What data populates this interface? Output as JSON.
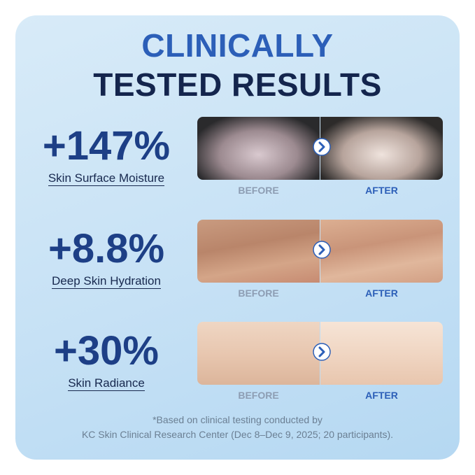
{
  "header": {
    "title_line1": "CLINICALLY",
    "title_line2": "TESTED RESULTS"
  },
  "results": [
    {
      "value": "+147%",
      "label": "Skin Surface Moisture",
      "before": "BEFORE",
      "after": "AFTER"
    },
    {
      "value": "+8.8%",
      "label": "Deep Skin Hydration",
      "before": "BEFORE",
      "after": "AFTER"
    },
    {
      "value": "+30%",
      "label": "Skin Radiance",
      "before": "BEFORE",
      "after": "AFTER"
    }
  ],
  "footnote": {
    "line1": "*Based on clinical testing conducted by",
    "line2": "KC Skin Clinical Research Center (Dec 8–Dec 9, 2025; 20 participants)."
  }
}
